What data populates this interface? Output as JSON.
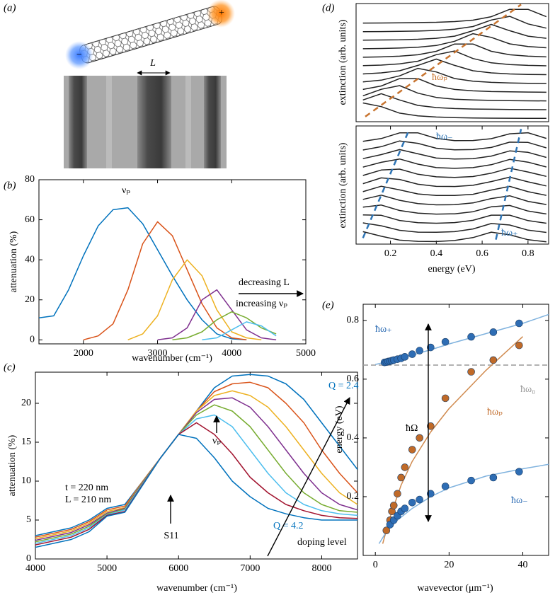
{
  "panel_a": {
    "label": "(a)",
    "length_label": "L",
    "minus": "−",
    "plus": "+"
  },
  "chart_data": [
    {
      "type": "line",
      "panel_label": "(b)",
      "x_label": "wavenumber (cm⁻¹)",
      "y_label": "attenuation (%)",
      "x": [
        1400,
        1600,
        1800,
        2000,
        2200,
        2400,
        2600,
        2800,
        3000,
        3200,
        3400,
        3600,
        3800,
        4000,
        4200,
        4400,
        4600,
        4800
      ],
      "series": [
        {
          "color": "#0072BD",
          "values": [
            11,
            12,
            25,
            42,
            57,
            65,
            66,
            58,
            45,
            32,
            20,
            10,
            3,
            0.5,
            0,
            null,
            null,
            null
          ]
        },
        {
          "color": "#D95319",
          "values": [
            null,
            null,
            null,
            0,
            2,
            8,
            25,
            48,
            59,
            52,
            35,
            18,
            6,
            1,
            0,
            null,
            null,
            null
          ]
        },
        {
          "color": "#EDB120",
          "values": [
            null,
            null,
            null,
            null,
            null,
            null,
            0,
            3,
            12,
            30,
            40,
            32,
            15,
            4,
            1,
            0,
            null,
            null
          ]
        },
        {
          "color": "#7E2F8E",
          "values": [
            null,
            null,
            null,
            null,
            null,
            null,
            null,
            null,
            0,
            1,
            6,
            20,
            25,
            15,
            5,
            1,
            0,
            null
          ]
        },
        {
          "color": "#77AC30",
          "values": [
            null,
            null,
            null,
            null,
            null,
            null,
            null,
            null,
            null,
            0,
            1,
            4,
            10,
            14,
            11,
            6,
            3,
            null
          ]
        },
        {
          "color": "#4DBEEE",
          "values": [
            null,
            null,
            null,
            null,
            null,
            null,
            null,
            null,
            null,
            null,
            null,
            0,
            1,
            5,
            9,
            7,
            2,
            null
          ]
        }
      ],
      "xlim": [
        1400,
        5000
      ],
      "xticks": [
        2000,
        3000,
        4000,
        5000
      ],
      "ylim": [
        -2,
        80
      ],
      "yticks": [
        0,
        20,
        40,
        60,
        80
      ],
      "annotations": [
        {
          "text": "νₚ",
          "color": "#000000"
        },
        {
          "text": "decreasing L",
          "color": "#000000"
        },
        {
          "text": "increasing νₚ",
          "color": "#000000"
        }
      ]
    },
    {
      "type": "line",
      "panel_label": "(c)",
      "x_label": "wavenumber (cm⁻¹)",
      "y_label": "attenuation (%)",
      "x": [
        4000,
        4250,
        4500,
        4750,
        5000,
        5250,
        5500,
        5750,
        6000,
        6250,
        6500,
        6750,
        7000,
        7250,
        7500,
        7750,
        8000,
        8250,
        8500
      ],
      "series": [
        {
          "color": "#0072BD",
          "values": [
            3,
            3.5,
            4,
            5,
            6.5,
            7,
            10,
            13,
            16,
            19,
            22,
            23.5,
            23.7,
            23.5,
            22.5,
            20.5,
            17.5,
            14.5,
            11.5
          ]
        },
        {
          "color": "#D95319",
          "values": [
            2.8,
            3.3,
            3.8,
            4.8,
            6.3,
            6.8,
            10,
            13,
            16,
            19,
            21.5,
            22.5,
            22.7,
            22,
            20,
            17.5,
            14,
            11,
            8.5
          ]
        },
        {
          "color": "#EDB120",
          "values": [
            2.6,
            3.1,
            3.6,
            4.6,
            6.1,
            6.6,
            10,
            13,
            16,
            19,
            21,
            21.6,
            21,
            19.5,
            17,
            14,
            11,
            8.5,
            7
          ]
        },
        {
          "color": "#7E2F8E",
          "values": [
            2.4,
            2.9,
            3.4,
            4.4,
            5.9,
            6.5,
            9.9,
            13,
            16,
            18.8,
            20.5,
            20.7,
            19.5,
            17,
            14,
            11,
            8.5,
            7,
            6.3
          ]
        },
        {
          "color": "#77AC30",
          "values": [
            2.2,
            2.7,
            3.2,
            4.2,
            5.8,
            6.4,
            9.8,
            13,
            16,
            18.5,
            19.8,
            19,
            17,
            14,
            11,
            8.5,
            7,
            6.2,
            6
          ]
        },
        {
          "color": "#4DBEEE",
          "values": [
            2,
            2.5,
            3,
            4,
            5.7,
            6.3,
            9.7,
            13,
            16,
            18,
            18.5,
            17,
            14,
            11,
            8.5,
            7,
            6.2,
            5.8,
            5.6
          ]
        },
        {
          "color": "#A2142F",
          "values": [
            1.8,
            2.3,
            2.8,
            3.8,
            5.6,
            6.1,
            9.6,
            13,
            16,
            17.5,
            16,
            13.5,
            10.5,
            8.5,
            7,
            6.2,
            5.6,
            5.3,
            5.2
          ]
        },
        {
          "color": "#0072BD",
          "values": [
            1.5,
            2,
            2.5,
            3.5,
            5.5,
            6,
            9.5,
            13,
            16,
            15.5,
            13,
            10,
            8,
            6.5,
            5.8,
            5.3,
            5,
            5,
            5
          ]
        }
      ],
      "xlim": [
        4000,
        8500
      ],
      "xticks": [
        4000,
        5000,
        6000,
        7000,
        8000
      ],
      "ylim": [
        0,
        24
      ],
      "yticks": [
        0,
        5,
        10,
        15,
        20
      ],
      "annotations": [
        {
          "text": "Q = 2.4",
          "color": "#0072BD"
        },
        {
          "text": "t = 220 nm",
          "color": "#000000"
        },
        {
          "text": "L = 210 nm",
          "color": "#000000"
        },
        {
          "text": "S11",
          "color": "#000000"
        },
        {
          "text": "νₚ",
          "color": "#000000"
        },
        {
          "text": "Q = 4.2",
          "color": "#0072BD"
        },
        {
          "text": "doping level",
          "color": "#000000"
        }
      ]
    },
    {
      "type": "line",
      "panel_label": "(d)",
      "y_label": "extinction (arb. units)",
      "color": "#222222",
      "x": [
        0.08,
        0.16,
        0.24,
        0.32,
        0.4,
        0.48,
        0.56,
        0.64,
        0.72,
        0.8,
        0.88
      ],
      "series": [
        {
          "values": [
            1.54,
            1.18,
            0.54,
            0.28,
            0.16,
            0.1,
            0.07,
            0.05,
            0.04,
            0.03,
            0.03
          ]
        },
        {
          "values": [
            1.83,
            2.45,
            1.83,
            1.3,
            1.09,
            0.99,
            0.94,
            0.92,
            0.9,
            0.89,
            0.88
          ]
        },
        {
          "values": [
            2.24,
            2.88,
            3.24,
            2.5,
            2.08,
            1.91,
            1.83,
            1.79,
            1.76,
            1.75,
            1.74
          ]
        },
        {
          "values": [
            2.87,
            3.21,
            3.93,
            3.93,
            3.21,
            2.87,
            2.73,
            2.66,
            2.63,
            2.61,
            2.59
          ]
        },
        {
          "values": [
            3.61,
            3.78,
            4.2,
            4.94,
            4.58,
            3.94,
            3.68,
            3.56,
            3.5,
            3.47,
            3.45
          ]
        },
        {
          "values": [
            4.39,
            4.49,
            4.7,
            5.23,
            5.85,
            5.23,
            4.7,
            4.49,
            4.39,
            4.34,
            4.32
          ]
        },
        {
          "values": [
            5.2,
            5.26,
            5.38,
            5.64,
            6.28,
            6.64,
            5.9,
            5.48,
            5.31,
            5.23,
            5.19
          ]
        },
        {
          "values": [
            6.03,
            6.06,
            6.13,
            6.27,
            6.61,
            7.33,
            7.33,
            6.61,
            6.27,
            6.13,
            6.06
          ]
        },
        {
          "values": [
            6.86,
            6.89,
            6.93,
            7.01,
            7.18,
            7.6,
            8.34,
            7.98,
            7.34,
            7.08,
            6.96
          ]
        },
        {
          "values": [
            7.7,
            7.72,
            7.74,
            7.79,
            7.89,
            8.1,
            8.63,
            9.25,
            8.63,
            8.1,
            7.89
          ]
        },
        {
          "values": [
            8.54,
            8.55,
            8.57,
            8.6,
            8.66,
            8.78,
            9.04,
            9.68,
            10.04,
            9.3,
            8.88
          ]
        },
        {
          "values": [
            9.38,
            9.39,
            9.41,
            9.43,
            9.46,
            9.53,
            9.67,
            10.01,
            10.73,
            10.73,
            10.01
          ]
        },
        {
          "color": "#C8742F",
          "style": "dashed",
          "x": [
            0.09,
            0.77
          ],
          "values": [
            0.2,
            11.2
          ]
        }
      ],
      "xlim": [
        0.05,
        0.89
      ],
      "ylim": [
        -0.3,
        11.3
      ],
      "annotations": [
        {
          "text": "ħωₚ",
          "color": "#C8742F"
        }
      ]
    },
    {
      "type": "line",
      "y_label": "extinction (arb. units)",
      "x_label": "energy (eV)",
      "color": "#222222",
      "x": [
        0.08,
        0.16,
        0.24,
        0.32,
        0.4,
        0.48,
        0.56,
        0.64,
        0.72,
        0.8,
        0.88
      ],
      "series": [
        {
          "values": [
            0.82,
            0.52,
            0.26,
            0.18,
            0.17,
            0.24,
            0.43,
            0.79,
            0.61,
            0.29,
            0.15
          ]
        },
        {
          "values": [
            1.4,
            1.21,
            0.91,
            0.79,
            0.78,
            0.82,
            1.0,
            1.36,
            1.26,
            0.92,
            0.77
          ]
        },
        {
          "values": [
            1.93,
            1.9,
            1.56,
            1.41,
            1.38,
            1.42,
            1.57,
            1.91,
            1.91,
            1.55,
            1.38
          ]
        },
        {
          "values": [
            2.44,
            2.58,
            2.22,
            2.04,
            1.98,
            2.0,
            2.14,
            2.46,
            2.55,
            2.18,
            1.99
          ]
        },
        {
          "values": [
            2.95,
            3.23,
            2.89,
            2.67,
            2.59,
            2.6,
            2.72,
            3.01,
            3.19,
            2.82,
            2.61
          ]
        },
        {
          "values": [
            3.46,
            3.82,
            3.58,
            3.31,
            3.21,
            3.21,
            3.29,
            3.57,
            3.81,
            3.46,
            3.22
          ]
        },
        {
          "values": [
            3.99,
            4.37,
            4.27,
            3.95,
            3.81,
            3.8,
            3.88,
            4.13,
            4.42,
            4.11,
            3.84
          ]
        },
        {
          "values": [
            4.53,
            4.89,
            4.95,
            4.61,
            4.44,
            4.4,
            4.46,
            4.68,
            5.01,
            4.76,
            4.47
          ]
        },
        {
          "values": [
            5.08,
            5.4,
            5.62,
            5.28,
            5.05,
            5.0,
            5.05,
            5.24,
            5.59,
            5.41,
            5.09
          ]
        },
        {
          "values": [
            5.64,
            5.91,
            6.24,
            5.96,
            5.68,
            5.62,
            5.64,
            5.81,
            6.15,
            6.06,
            5.72
          ]
        },
        {
          "values": [
            6.21,
            6.43,
            6.81,
            6.65,
            6.33,
            6.22,
            6.24,
            6.38,
            6.73,
            6.71,
            6.35
          ]
        },
        {
          "values": [
            6.78,
            6.97,
            7.34,
            7.34,
            6.98,
            6.83,
            6.84,
            6.96,
            7.28,
            7.35,
            6.98
          ]
        },
        {
          "color": "#2E75B6",
          "style": "dashed",
          "x": [
            0.08,
            0.28
          ],
          "values": [
            0.4,
            7.5
          ]
        },
        {
          "color": "#2E75B6",
          "style": "dashed",
          "x": [
            0.66,
            0.77
          ],
          "values": [
            0.3,
            7.6
          ]
        }
      ],
      "xlim": [
        0.05,
        0.89
      ],
      "xticks": [
        0.2,
        0.4,
        0.6,
        0.8
      ],
      "ylim": [
        0,
        7.8
      ],
      "annotations": [
        {
          "text": "ħω₋",
          "color": "#2E75B6"
        },
        {
          "text": "ħω₊",
          "color": "#2E75B6"
        }
      ]
    },
    {
      "type": "scatter",
      "panel_label": "(e)",
      "x_label": "wavevector (μm⁻¹)",
      "y_label": "energy (eV)",
      "series": [
        {
          "color": "#7FB2DE",
          "style": "line",
          "x": [
            0,
            5,
            10,
            15,
            20,
            30,
            40,
            47
          ],
          "values": [
            0.65,
            0.664,
            0.682,
            0.7,
            0.72,
            0.755,
            0.79,
            0.82
          ]
        },
        {
          "color": "#D08A4E",
          "style": "line",
          "x": [
            2,
            4,
            7,
            10,
            15,
            20,
            30,
            40
          ],
          "values": [
            0.04,
            0.13,
            0.24,
            0.32,
            0.42,
            0.5,
            0.63,
            0.745
          ]
        },
        {
          "color": "#7FB2DE",
          "style": "line",
          "x": [
            1,
            3,
            6,
            10,
            15,
            20,
            30,
            40,
            47
          ],
          "values": [
            0.04,
            0.08,
            0.12,
            0.16,
            0.2,
            0.23,
            0.27,
            0.295,
            0.31
          ]
        },
        {
          "color": "#2E6DB4",
          "style": "marker",
          "x": [
            2.5,
            3,
            3.5,
            4,
            4.5,
            5,
            6,
            7,
            8,
            10,
            12,
            15,
            19,
            26,
            32,
            39
          ],
          "values": [
            0.657,
            0.658,
            0.66,
            0.661,
            0.663,
            0.665,
            0.668,
            0.671,
            0.676,
            0.685,
            0.697,
            0.708,
            0.727,
            0.744,
            0.76,
            0.79
          ]
        },
        {
          "color": "#C06A28",
          "style": "marker",
          "x": [
            3,
            4,
            4.5,
            5,
            6,
            7,
            8,
            10,
            12,
            15,
            19,
            26,
            32,
            39
          ],
          "values": [
            0.085,
            0.12,
            0.15,
            0.17,
            0.21,
            0.265,
            0.3,
            0.36,
            0.4,
            0.44,
            0.535,
            0.625,
            0.665,
            0.715
          ]
        },
        {
          "color": "#2E6DB4",
          "style": "marker",
          "x": [
            4,
            5,
            6,
            7,
            8,
            10,
            12,
            15,
            19,
            26,
            32,
            39
          ],
          "values": [
            0.105,
            0.12,
            0.135,
            0.15,
            0.16,
            0.18,
            0.19,
            0.21,
            0.235,
            0.255,
            0.265,
            0.285
          ]
        }
      ],
      "hline": {
        "value": 0.648,
        "color": "#999999"
      },
      "xlim": [
        -3.3,
        47
      ],
      "xticks": [
        0,
        20,
        40
      ],
      "ylim": [
        0,
        0.855
      ],
      "yticks": [
        0.2,
        0.4,
        0.6,
        0.8
      ],
      "annotations": [
        {
          "text": "ħω₊",
          "color": "#2E6DB4"
        },
        {
          "text": "ħω₀",
          "color": "#999999"
        },
        {
          "text": "ħΩ",
          "color": "#000000"
        },
        {
          "text": "ħωₚ",
          "color": "#C06A28"
        },
        {
          "text": "ħω₋",
          "color": "#2E6DB4"
        }
      ]
    }
  ]
}
